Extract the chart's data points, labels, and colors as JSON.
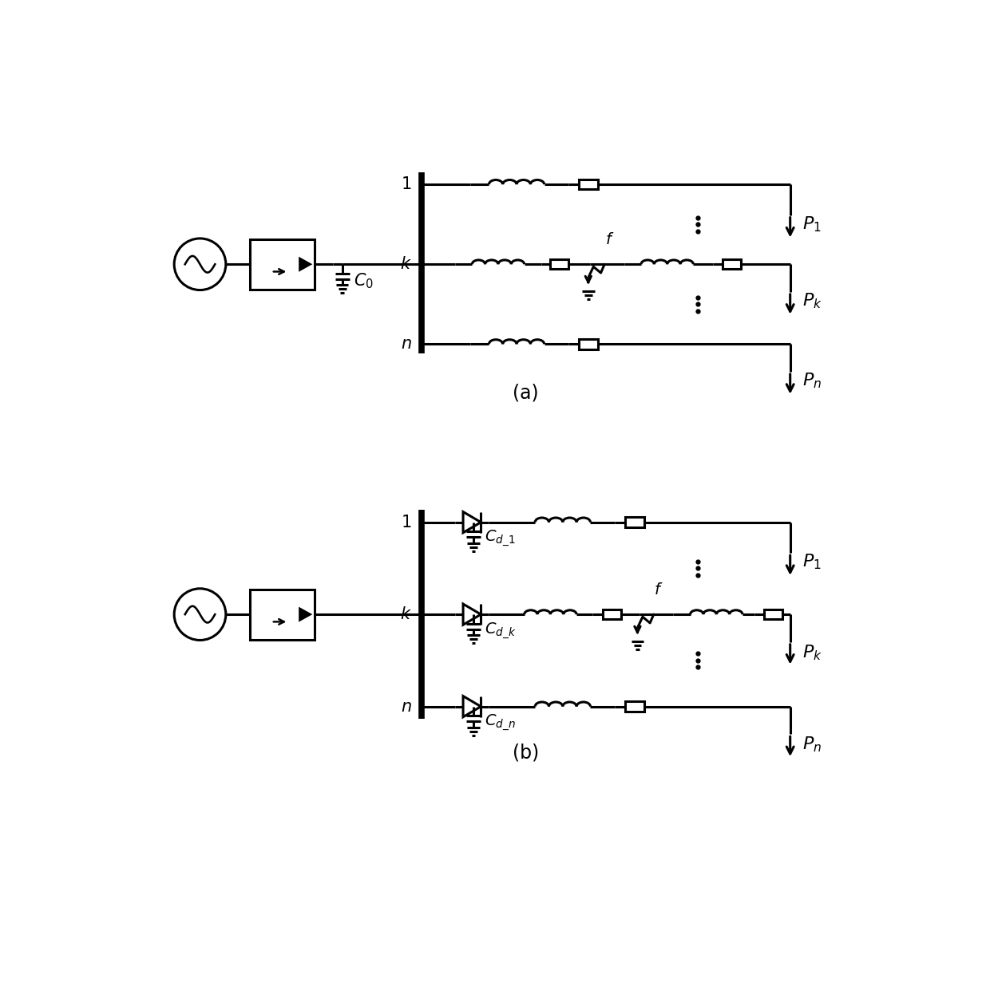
{
  "bg_color": "#ffffff",
  "line_color": "#000000",
  "line_width": 2.2,
  "fig_width": 12.4,
  "fig_height": 12.46,
  "label_a": "(a)",
  "label_b": "(b)"
}
